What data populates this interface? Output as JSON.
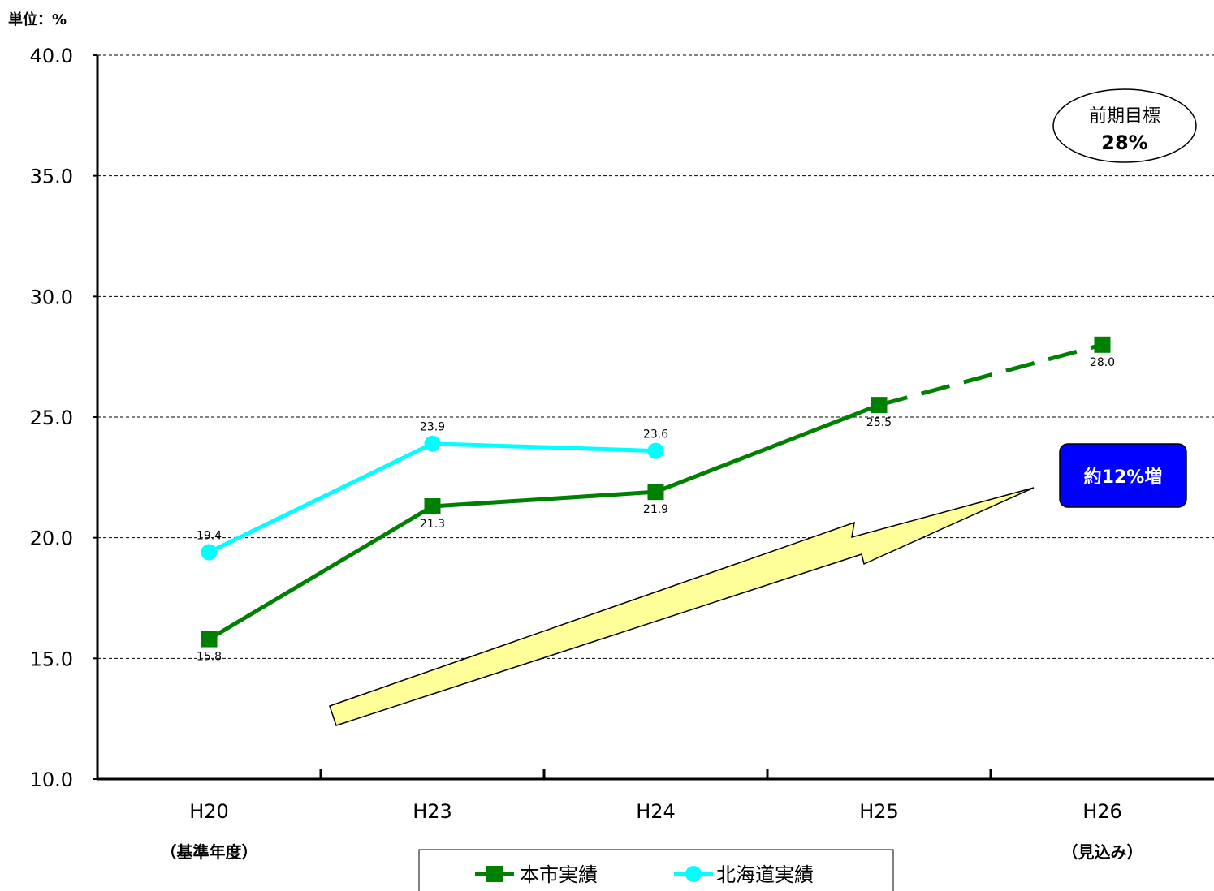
{
  "chart_data": {
    "type": "line",
    "unit_label": "単位：%",
    "categories": [
      "H20",
      "H23",
      "H24",
      "H25",
      "H26"
    ],
    "category_notes": [
      "（基準年度）",
      "",
      "",
      "",
      "（見込み）"
    ],
    "yticks": [
      "10.0",
      "15.0",
      "20.0",
      "25.0",
      "30.0",
      "35.0",
      "40.0"
    ],
    "ylim": [
      10,
      40
    ],
    "grid": true,
    "legend_position": "bottom",
    "series": [
      {
        "name": "本市実績",
        "color": "#008000",
        "marker": "square",
        "values": [
          15.8,
          21.3,
          21.9,
          25.5,
          28.0
        ],
        "labels": [
          "15.8",
          "21.3",
          "21.9",
          "25.5",
          "28.0"
        ],
        "dashed_segments": [
          3
        ]
      },
      {
        "name": "北海道実績",
        "color": "#00FFFF",
        "marker": "circle",
        "values": [
          19.4,
          23.9,
          23.6,
          null,
          null
        ],
        "labels": [
          "19.4",
          "23.9",
          "23.6",
          "",
          ""
        ]
      }
    ],
    "annotations": {
      "target_line1": "前期目標",
      "target_line2": "28%",
      "increase": "約12%増",
      "increase_color": "#0000FF",
      "arrow_color": "#FFFF99"
    }
  }
}
